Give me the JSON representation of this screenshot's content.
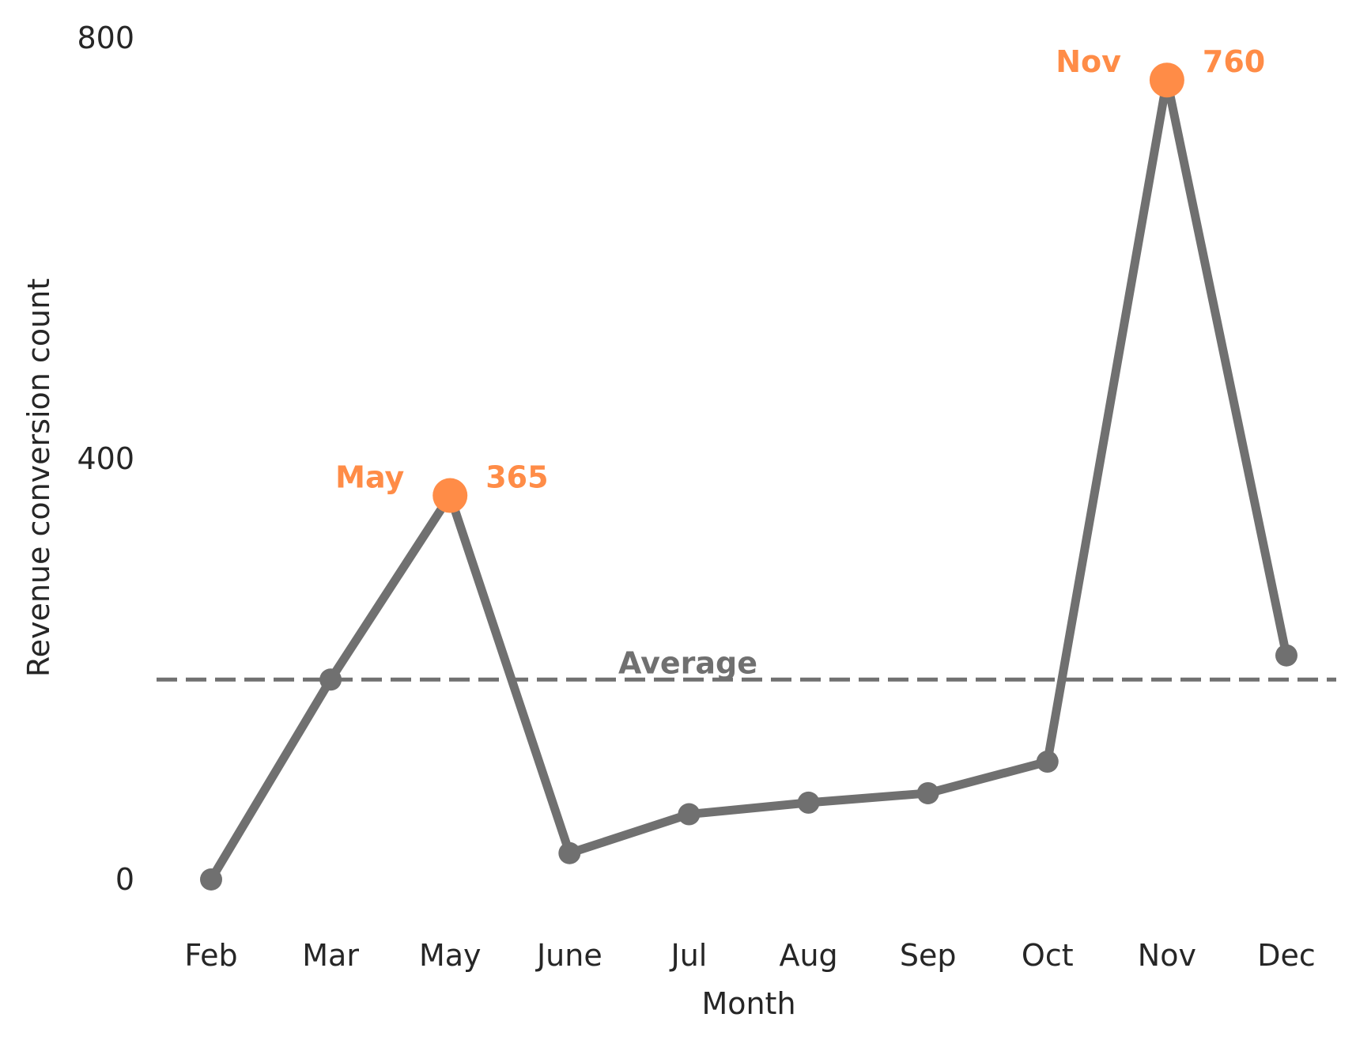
{
  "chart_data": {
    "type": "line",
    "categories": [
      "Feb",
      "Mar",
      "May",
      "June",
      "Jul",
      "Aug",
      "Sep",
      "Oct",
      "Nov",
      "Dec"
    ],
    "values": [
      0,
      190,
      365,
      25,
      62,
      73,
      82,
      112,
      760,
      213
    ],
    "xlabel": "Month",
    "ylabel": "Revenue conversion count",
    "ylim": [
      -30,
      800
    ],
    "yticks": [
      0,
      400,
      800
    ],
    "grid": false,
    "average": {
      "label": "Average",
      "value": 190
    },
    "highlights": [
      {
        "category": "May",
        "value": 365,
        "value_label": "365"
      },
      {
        "category": "Nov",
        "value": 760,
        "value_label": "760"
      }
    ],
    "colors": {
      "line": "#707070",
      "highlight": "#ff8c47",
      "average": "#707070",
      "text": "#262626"
    }
  }
}
